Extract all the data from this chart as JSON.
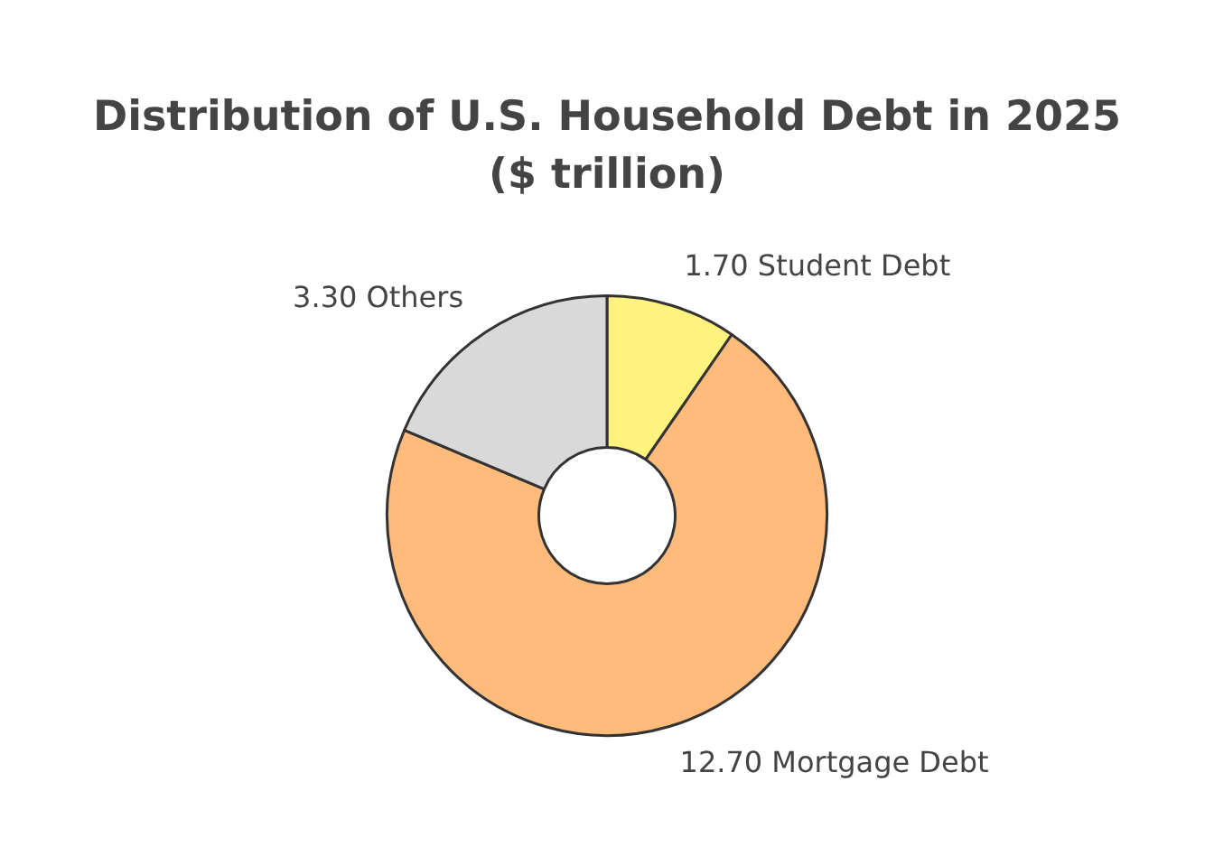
{
  "chart_data": {
    "type": "donut",
    "title": "Distribution of U.S. Household Debt in 2025 ($ trillion)",
    "categories": [
      "Student Debt",
      "Mortgage Debt",
      "Others"
    ],
    "values": [
      1.7,
      12.7,
      3.3
    ],
    "value_labels": [
      "1.70",
      "12.70",
      "3.30"
    ],
    "colors": [
      "#fff27f",
      "#ffbb7c",
      "#d9d9d9"
    ]
  }
}
